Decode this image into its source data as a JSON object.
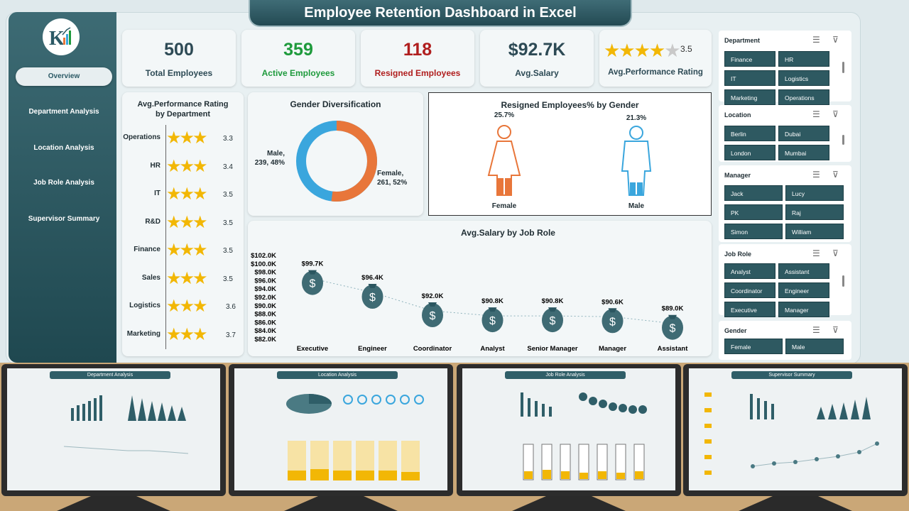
{
  "title": "Employee Retention Dashboard in Excel",
  "nav": [
    "Overview",
    "Department Analysis",
    "Location Analysis",
    "Job Role Analysis",
    "Supervisor Summary"
  ],
  "kpis": [
    {
      "value": "500",
      "label": "Total Employees",
      "color": "#2d4a55"
    },
    {
      "value": "359",
      "label": "Active Employees",
      "color": "#1e9a3c"
    },
    {
      "value": "118",
      "label": "Resigned Employees",
      "color": "#b01e1e"
    },
    {
      "value": "$92.7K",
      "label": "Avg.Salary",
      "color": "#2d4a55"
    },
    {
      "value": "3.5",
      "label": "Avg.Performance Rating",
      "color": "#2d4a55"
    }
  ],
  "rating_chart": {
    "title": "Avg.Performance Rating by Department",
    "items": [
      {
        "dept": "Operations",
        "value": "3.3"
      },
      {
        "dept": "HR",
        "value": "3.4"
      },
      {
        "dept": "IT",
        "value": "3.5"
      },
      {
        "dept": "R&D",
        "value": "3.5"
      },
      {
        "dept": "Finance",
        "value": "3.5"
      },
      {
        "dept": "Sales",
        "value": "3.5"
      },
      {
        "dept": "Logistics",
        "value": "3.6"
      },
      {
        "dept": "Marketing",
        "value": "3.7"
      }
    ]
  },
  "gender_chart": {
    "title": "Gender Diversification",
    "male_label": "Male,",
    "male_value": "239, 48%",
    "female_label": "Female,",
    "female_value": "261, 52%",
    "male_color": "#3aa6dd",
    "female_color": "#e8763a"
  },
  "resigned_gender": {
    "title": "Resigned Employees% by Gender",
    "female_pct": "25.7%",
    "male_pct": "21.3%",
    "female_label": "Female",
    "male_label": "Male"
  },
  "chart_data": {
    "type": "line",
    "title": "Avg.Salary by Job Role",
    "categories": [
      "Executive",
      "Engineer",
      "Coordinator",
      "Analyst",
      "Senior Manager",
      "Manager",
      "Assistant"
    ],
    "values": [
      99.7,
      96.4,
      92.0,
      90.8,
      90.8,
      90.6,
      89.0
    ],
    "data_labels": [
      "$99.7K",
      "$96.4K",
      "$92.0K",
      "$90.8K",
      "$90.8K",
      "$90.6K",
      "$89.0K"
    ],
    "yticks": [
      "$102.0K",
      "$100.0K",
      "$98.0K",
      "$96.0K",
      "$94.0K",
      "$92.0K",
      "$90.0K",
      "$88.0K",
      "$86.0K",
      "$84.0K",
      "$82.0K"
    ],
    "ylim": [
      82,
      102
    ]
  },
  "slicers": [
    {
      "title": "Department",
      "items": [
        "Finance",
        "HR",
        "IT",
        "Logistics",
        "Marketing",
        "Operations"
      ]
    },
    {
      "title": "Location",
      "items": [
        "Berlin",
        "Dubai",
        "London",
        "Mumbai"
      ]
    },
    {
      "title": "Manager",
      "items": [
        "Jack",
        "Lucy",
        "PK",
        "Raj",
        "Simon",
        "William"
      ]
    },
    {
      "title": "Job Role",
      "items": [
        "Analyst",
        "Assistant",
        "Coordinator",
        "Engineer",
        "Executive",
        "Manager"
      ]
    },
    {
      "title": "Gender",
      "items": [
        "Female",
        "Male"
      ]
    }
  ],
  "previews": [
    "Department Analysis",
    "Location Analysis",
    "Job Role Analysis",
    "Supervisor Summary"
  ]
}
